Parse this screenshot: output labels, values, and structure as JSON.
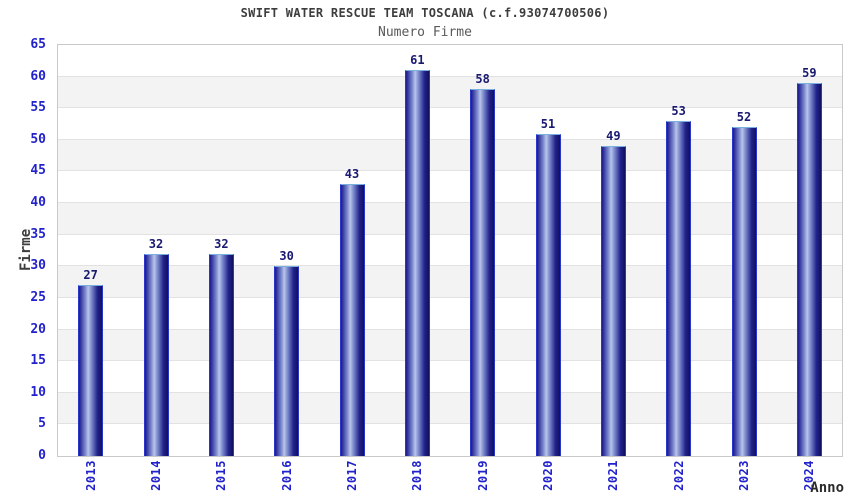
{
  "chart_data": {
    "type": "bar",
    "title": "SWIFT WATER RESCUE TEAM TOSCANA (c.f.93074700506)",
    "subtitle": "Numero Firme",
    "xlabel": "Anno",
    "ylabel": "Firme",
    "categories": [
      "2013",
      "2014",
      "2015",
      "2016",
      "2017",
      "2018",
      "2019",
      "2020",
      "2021",
      "2022",
      "2023",
      "2024"
    ],
    "values": [
      27,
      32,
      32,
      30,
      43,
      61,
      58,
      51,
      49,
      53,
      52,
      59
    ],
    "ylim": [
      0,
      65
    ],
    "ytick_step": 5,
    "yticks": [
      0,
      5,
      10,
      15,
      20,
      25,
      30,
      35,
      40,
      45,
      50,
      55,
      60,
      65
    ],
    "grid": true,
    "legend_shown": false,
    "bar_value_labels_shown": true,
    "alternating_bands": true,
    "colors": {
      "background": "#ffffff",
      "title": "#3d3d3d",
      "subtitle": "#5a5a5a",
      "tick_label": "#2222cc",
      "value_label": "#191970",
      "axis_label": "#2b2b2b",
      "band": "#f3f3f3",
      "gridline": "#e2e2e2",
      "plot_border": "#c9c9c9",
      "bar_dark": "#1b1b8e",
      "bar_mid": "#7d8cce",
      "bar_light": "#bac4ea",
      "bar_end": "#10105e",
      "bar_outline_side": "#2936c8",
      "bar_outline_top": "#7ab0e0"
    }
  }
}
